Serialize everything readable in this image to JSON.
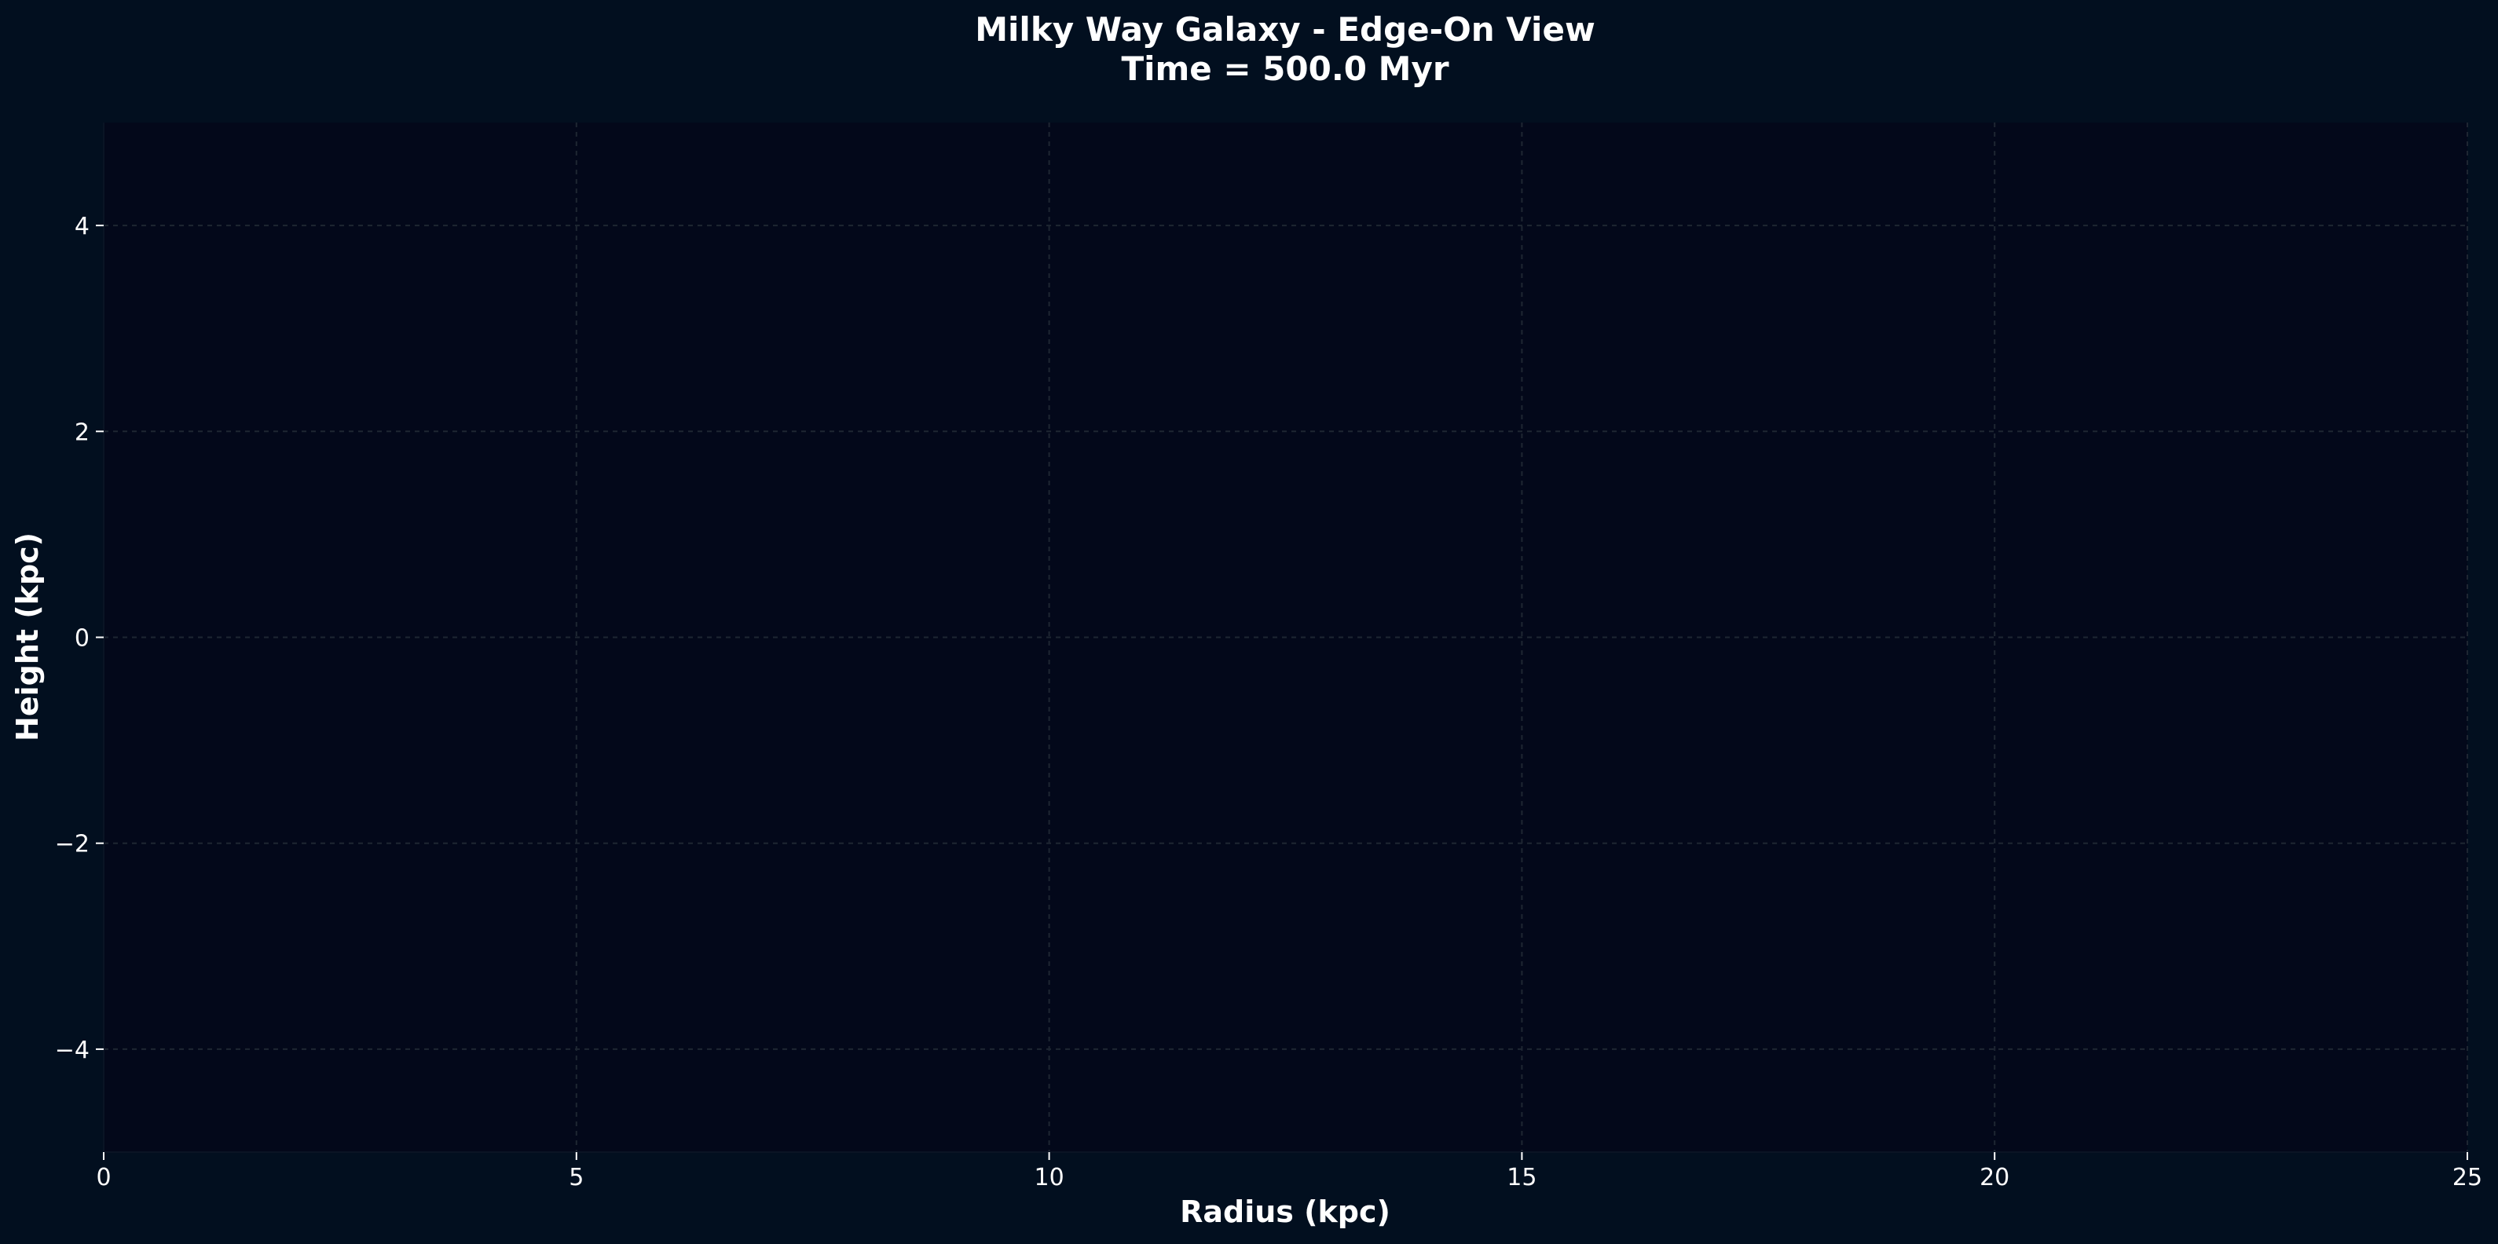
{
  "chart_data": {
    "type": "scatter",
    "title": "Milky Way Galaxy - Edge-On View",
    "subtitle": "Time = 500.0 Myr",
    "xlabel": "Radius (kpc)",
    "ylabel": "Height (kpc)",
    "xlim": [
      0,
      25
    ],
    "ylim": [
      -5,
      5
    ],
    "xticks": [
      0,
      5,
      10,
      15,
      20,
      25
    ],
    "xtick_labels": [
      "0",
      "5",
      "10",
      "15",
      "20",
      "25"
    ],
    "yticks": [
      -4,
      -2,
      0,
      2,
      4
    ],
    "ytick_labels": [
      "−4",
      "−2",
      "0",
      "2",
      "4"
    ],
    "grid": true,
    "series": [],
    "colors": {
      "figure_background": "#020f1f",
      "plot_background": "#03081a",
      "grid": "#1e2632",
      "text": "#ffffff"
    }
  }
}
